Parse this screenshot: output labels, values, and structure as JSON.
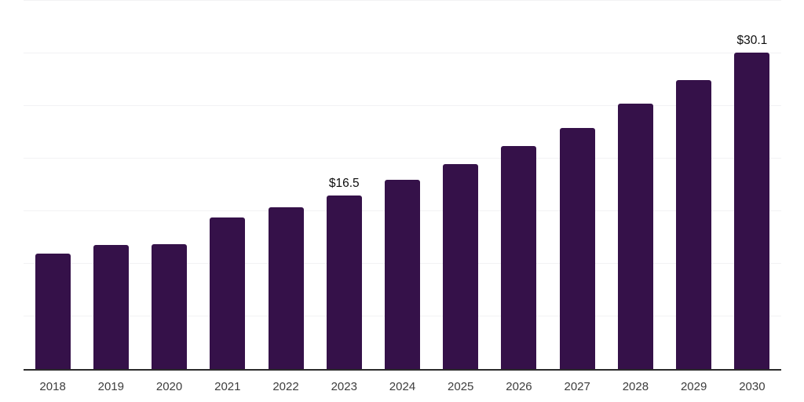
{
  "chart_data": {
    "type": "bar",
    "categories": [
      "2018",
      "2019",
      "2020",
      "2021",
      "2022",
      "2023",
      "2024",
      "2025",
      "2026",
      "2027",
      "2028",
      "2029",
      "2030"
    ],
    "values": [
      11.0,
      11.8,
      11.9,
      14.4,
      15.4,
      16.5,
      18.0,
      19.5,
      21.2,
      22.9,
      25.2,
      27.5,
      30.1
    ],
    "labeled_points": [
      {
        "category": "2023",
        "label": "$16.5"
      },
      {
        "category": "2030",
        "label": "$30.1"
      }
    ],
    "title": "",
    "xlabel": "",
    "ylabel": "",
    "ylim": [
      0,
      35
    ],
    "gridline_interval": 5,
    "grid": "horizontal-only",
    "legend": "none",
    "y_axis_tick_labels_visible": false,
    "bar_color": "#351149",
    "grid_color": "#f2f2f4",
    "axis_line_color": "#2b2b2b",
    "x_tick_label_color": "#3d3d3d",
    "value_label_color": "#0e0e0e"
  }
}
